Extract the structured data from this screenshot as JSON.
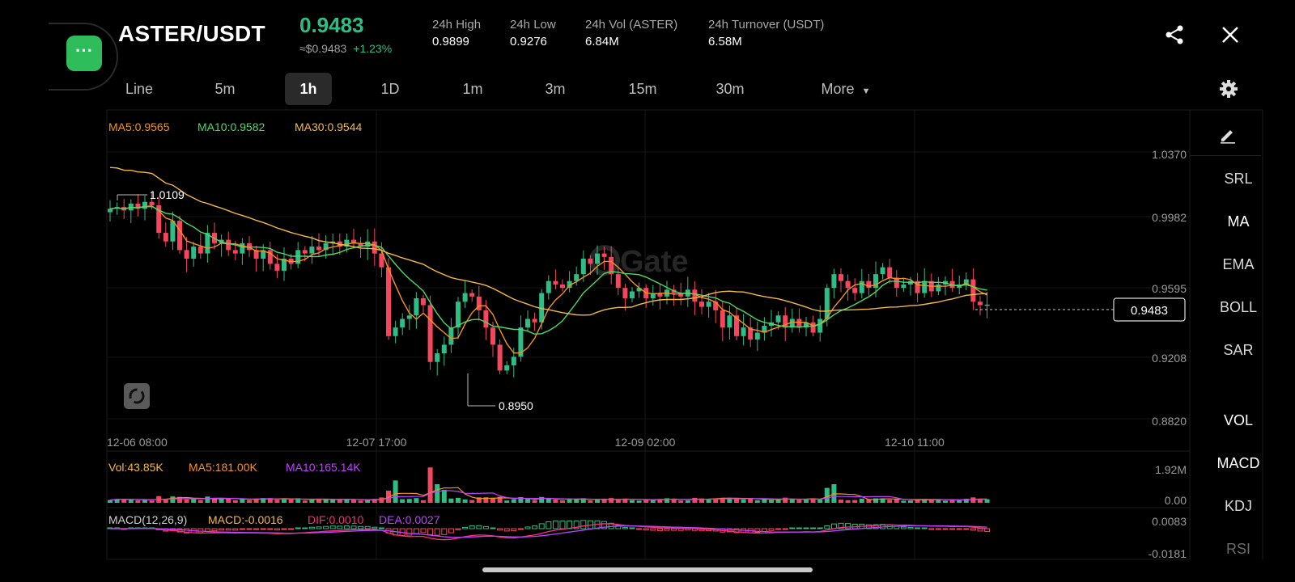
{
  "header": {
    "pair": "ASTER/USDT",
    "last_price": "0.9483",
    "usd_price": "≈$0.9483",
    "change": "+1.23%",
    "stats": [
      {
        "label": "24h High",
        "value": "0.9899"
      },
      {
        "label": "24h Low",
        "value": "0.9276"
      },
      {
        "label": "24h Vol (ASTER)",
        "value": "6.84M"
      },
      {
        "label": "24h Turnover (USDT)",
        "value": "6.58M"
      }
    ],
    "chat_icon": "chat-bubble-icon",
    "share_icon": "share-icon",
    "close_icon": "close-icon"
  },
  "tabs": [
    {
      "label": "Line"
    },
    {
      "label": "5m"
    },
    {
      "label": "1h",
      "active": true
    },
    {
      "label": "1D"
    },
    {
      "label": "1m"
    },
    {
      "label": "3m"
    },
    {
      "label": "15m"
    },
    {
      "label": "30m"
    }
  ],
  "more_label": "More",
  "indicators": {
    "ma5": "MA5:0.9565",
    "ma10": "MA10:0.9582",
    "ma30": "MA30:0.9544",
    "vol": "Vol:43.85K",
    "vol_ma5": "MA5:181.00K",
    "vol_ma10": "MA10:165.14K",
    "macd_title": "MACD(12,26,9)",
    "macd": "MACD:-0.0016",
    "dif": "DIF:0.0010",
    "dea": "DEA:0.0027"
  },
  "price_axis": [
    "1.0370",
    "0.9982",
    "0.9595",
    "0.9208",
    "0.8820"
  ],
  "time_axis": [
    "12-06 08:00",
    "12-07 17:00",
    "12-09 02:00",
    "12-10 11:00"
  ],
  "vol_axis": [
    "1.92M",
    "0.00"
  ],
  "macd_axis": [
    "0.0083",
    "-0.0181"
  ],
  "current_price_tag": "0.9483",
  "high_marker": "1.0109",
  "low_marker": "0.8950",
  "watermark": "Gate",
  "side_tools": [
    "SRL",
    "MA",
    "EMA",
    "BOLL",
    "SAR"
  ],
  "side_tools_lower": [
    "VOL",
    "MACD",
    "KDJ",
    "RSI"
  ],
  "colors": {
    "up": "#2ebd85",
    "down": "#f6465d",
    "ma5": "#f7931a",
    "ma10": "#4cd964",
    "ma30": "#f5b942",
    "dea": "#c040ff",
    "dif": "#ff2d7a"
  },
  "chart_data": {
    "type": "candlestick",
    "interval": "1h",
    "price_range": [
      0.882,
      1.037
    ],
    "closes": [
      1.004,
      1.005,
      1.003,
      1.007,
      1.004,
      1.008,
      1.006,
      0.99,
      0.985,
      0.997,
      0.98,
      0.975,
      0.982,
      0.978,
      0.99,
      0.984,
      0.986,
      0.98,
      0.978,
      0.984,
      0.98,
      0.975,
      0.98,
      0.972,
      0.968,
      0.975,
      0.972,
      0.98,
      0.978,
      0.982,
      0.98,
      0.984,
      0.985,
      0.982,
      0.986,
      0.984,
      0.982,
      0.985,
      0.978,
      0.97,
      0.93,
      0.935,
      0.94,
      0.942,
      0.952,
      0.948,
      0.915,
      0.92,
      0.925,
      0.935,
      0.95,
      0.955,
      0.953,
      0.945,
      0.935,
      0.925,
      0.91,
      0.913,
      0.918,
      0.935,
      0.94,
      0.938,
      0.955,
      0.962,
      0.96,
      0.958,
      0.962,
      0.966,
      0.975,
      0.972,
      0.978,
      0.976,
      0.966,
      0.958,
      0.952,
      0.956,
      0.958,
      0.952,
      0.955,
      0.953,
      0.957,
      0.955,
      0.953,
      0.957,
      0.95,
      0.947,
      0.95,
      0.945,
      0.935,
      0.942,
      0.93,
      0.935,
      0.928,
      0.932,
      0.936,
      0.938,
      0.942,
      0.935,
      0.94,
      0.935,
      0.938,
      0.932,
      0.94,
      0.958,
      0.966,
      0.962,
      0.958,
      0.955,
      0.962,
      0.958,
      0.966,
      0.97,
      0.964,
      0.958,
      0.96,
      0.962,
      0.955,
      0.962,
      0.956,
      0.96,
      0.962,
      0.958,
      0.96,
      0.963,
      0.95,
      0.948,
      0.9483
    ],
    "high_point": 1.0109,
    "low_point": 0.895
  }
}
